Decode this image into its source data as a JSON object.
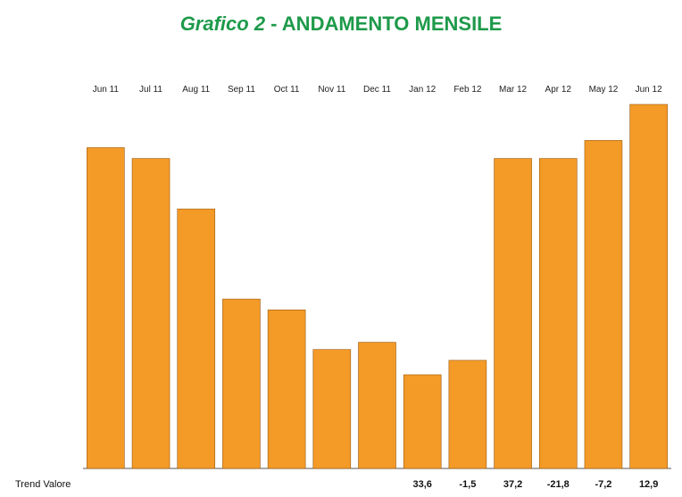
{
  "title": {
    "prefix": "Grafico 2",
    "separator": " - ",
    "main": "ANDAMENTO MENSILE"
  },
  "colors": {
    "title": "#1e9a4a",
    "bar_fill": "#f39a27",
    "bar_stroke": "#9a5a10",
    "baseline": "#555555"
  },
  "chart_data": {
    "type": "bar",
    "title": "Grafico 2 - ANDAMENTO MENSILE",
    "categories": [
      "Jun 11",
      "Jul 11",
      "Aug 11",
      "Sep 11",
      "Oct 11",
      "Nov 11",
      "Dec 11",
      "Jan 12",
      "Feb 12",
      "Mar 12",
      "Apr 12",
      "May 12",
      "Jun 12"
    ],
    "values": [
      89,
      86,
      72,
      47,
      44,
      33,
      35,
      26,
      30,
      86,
      86,
      91,
      101
    ],
    "ylim": [
      0,
      101
    ],
    "xlabel": "",
    "ylabel": "",
    "category_position": "top",
    "grid": false,
    "legend": "none",
    "trend_row": {
      "label": "Trend Valore",
      "values": [
        "",
        "",
        "",
        "",
        "",
        "",
        "",
        "33,6",
        "-1,5",
        "37,2",
        "-21,8",
        "-7,2",
        "12,9"
      ]
    }
  }
}
